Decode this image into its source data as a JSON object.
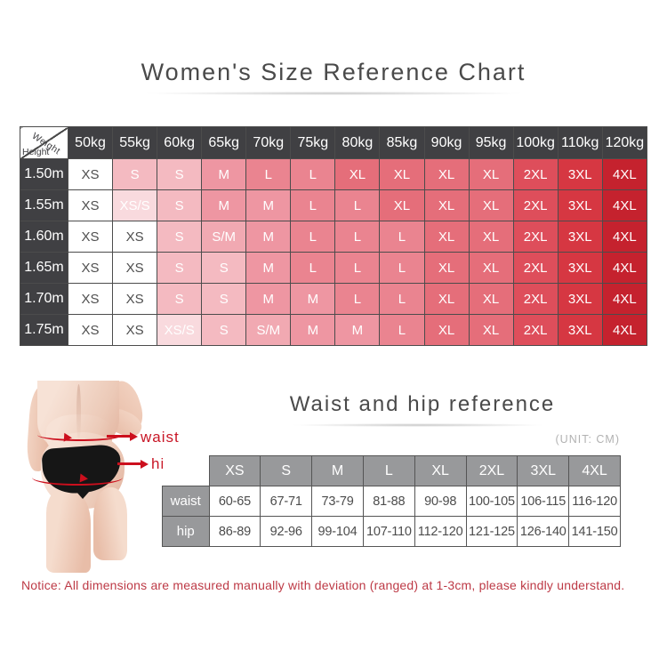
{
  "page": {
    "title": "Women's Size Reference Chart",
    "section2_title": "Waist and hip reference",
    "unit_note": "(UNIT: CM)",
    "notice": "Notice:  All dimensions are measured manually with deviation (ranged) at 1-3cm, please kindly understand."
  },
  "size_chart": {
    "corner": {
      "top": "Weight",
      "bottom": "Height"
    },
    "weights": [
      "50kg",
      "55kg",
      "60kg",
      "65kg",
      "70kg",
      "75kg",
      "80kg",
      "85kg",
      "90kg",
      "95kg",
      "100kg",
      "110kg",
      "120kg"
    ],
    "rows": [
      {
        "height": "1.50m",
        "sizes": [
          "XS",
          "S",
          "S",
          "M",
          "L",
          "L",
          "XL",
          "XL",
          "XL",
          "XL",
          "2XL",
          "3XL",
          "4XL"
        ]
      },
      {
        "height": "1.55m",
        "sizes": [
          "XS",
          "XS/S",
          "S",
          "M",
          "M",
          "L",
          "L",
          "XL",
          "XL",
          "XL",
          "2XL",
          "3XL",
          "4XL"
        ]
      },
      {
        "height": "1.60m",
        "sizes": [
          "XS",
          "XS",
          "S",
          "S/M",
          "M",
          "L",
          "L",
          "L",
          "XL",
          "XL",
          "2XL",
          "3XL",
          "4XL"
        ]
      },
      {
        "height": "1.65m",
        "sizes": [
          "XS",
          "XS",
          "S",
          "S",
          "M",
          "L",
          "L",
          "L",
          "XL",
          "XL",
          "2XL",
          "3XL",
          "4XL"
        ]
      },
      {
        "height": "1.70m",
        "sizes": [
          "XS",
          "XS",
          "S",
          "S",
          "M",
          "M",
          "L",
          "L",
          "XL",
          "XL",
          "2XL",
          "3XL",
          "4XL"
        ]
      },
      {
        "height": "1.75m",
        "sizes": [
          "XS",
          "XS",
          "XS/S",
          "S",
          "S/M",
          "M",
          "M",
          "L",
          "XL",
          "XL",
          "2XL",
          "3XL",
          "4XL"
        ]
      }
    ],
    "size_colors": {
      "XS": "#ffffff",
      "XS/S": "#f9dade",
      "S": "#f4bac1",
      "S/M": "#f1a9b2",
      "M": "#ee96a2",
      "L": "#ea8490",
      "XL": "#e56e7a",
      "2XL": "#de4e5b",
      "3XL": "#d63742",
      "4XL": "#c5222e"
    },
    "header_bg": "#404043",
    "xs_text_color": "#4f4f4f",
    "cell_text_color": "#ffffff"
  },
  "measure_figure": {
    "waist_label": "waist",
    "hip_label": "hip",
    "arrow_color": "#cc0f1d"
  },
  "waist_hip_table": {
    "columns": [
      "XS",
      "S",
      "M",
      "L",
      "XL",
      "2XL",
      "3XL",
      "4XL"
    ],
    "rows": [
      {
        "label": "waist",
        "values": [
          "60-65",
          "67-71",
          "73-79",
          "81-88",
          "90-98",
          "100-105",
          "106-115",
          "116-120"
        ]
      },
      {
        "label": "hip",
        "values": [
          "86-89",
          "92-96",
          "99-104",
          "107-110",
          "112-120",
          "121-125",
          "126-140",
          "141-150"
        ]
      }
    ],
    "header_bg": "#98999b"
  }
}
